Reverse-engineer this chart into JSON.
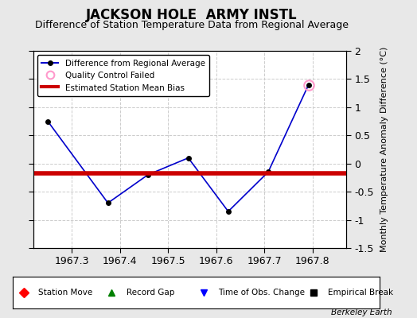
{
  "title": "JACKSON HOLE  ARMY INSTL",
  "subtitle": "Difference of Station Temperature Data from Regional Average",
  "ylabel": "Monthly Temperature Anomaly Difference (°C)",
  "background_color": "#e8e8e8",
  "plot_bg_color": "#ffffff",
  "x_values": [
    1967.25,
    1967.375,
    1967.458,
    1967.542,
    1967.625,
    1967.708,
    1967.792
  ],
  "y_values": [
    0.75,
    -0.7,
    -0.2,
    0.1,
    -0.85,
    -0.15,
    1.4
  ],
  "bias_y": -0.18,
  "qc_failed_x": [
    1967.792
  ],
  "qc_failed_y": [
    1.4
  ],
  "xlim": [
    1967.22,
    1967.87
  ],
  "ylim": [
    -1.5,
    2.0
  ],
  "xticks": [
    1967.3,
    1967.4,
    1967.5,
    1967.6,
    1967.7,
    1967.8
  ],
  "yticks": [
    -1.5,
    -1.0,
    -0.5,
    0.0,
    0.5,
    1.0,
    1.5,
    2.0
  ],
  "line_color": "#0000cc",
  "marker_color": "#000000",
  "bias_color": "#cc0000",
  "qc_color": "#ff99cc",
  "attribution": "Berkeley Earth",
  "title_fontsize": 12,
  "subtitle_fontsize": 9,
  "tick_fontsize": 9,
  "ylabel_fontsize": 8
}
